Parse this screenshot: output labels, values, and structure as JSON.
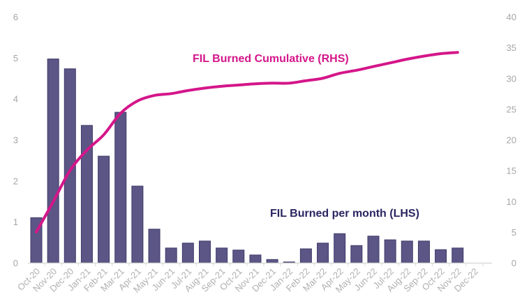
{
  "chart_data": {
    "type": "bar+line",
    "categories": [
      "Oct-20",
      "Nov-20",
      "Dec-20",
      "Jan-21",
      "Feb-21",
      "Mar-21",
      "Apr-21",
      "May-21",
      "Jun-21",
      "Jul-21",
      "Aug-21",
      "Sep-21",
      "Oct-21",
      "Nov-21",
      "Dec-21",
      "Jan-22",
      "Feb-22",
      "Mar-22",
      "Apr-22",
      "May-22",
      "Jun-22",
      "Jul-22",
      "Aug-22",
      "Sep-22",
      "Oct-22",
      "Nov-22",
      "Dec-22"
    ],
    "series": [
      {
        "name": "FIL Burned per month (LHS)",
        "type": "bar",
        "axis": "left",
        "color": "#5b5685",
        "values": [
          1.1,
          4.97,
          4.73,
          3.35,
          2.6,
          3.67,
          1.87,
          0.82,
          0.36,
          0.48,
          0.53,
          0.36,
          0.31,
          0.19,
          0.08,
          0.02,
          0.34,
          0.48,
          0.71,
          0.42,
          0.65,
          0.56,
          0.53,
          0.53,
          0.32,
          0.36,
          null
        ]
      },
      {
        "name": "FIL Burned Cumulative (RHS)",
        "type": "line",
        "axis": "right",
        "color": "#d4168a",
        "values": [
          5.0,
          9.9,
          15.0,
          18.3,
          20.8,
          24.3,
          26.3,
          27.2,
          27.5,
          28.0,
          28.4,
          28.7,
          28.9,
          29.1,
          29.2,
          29.2,
          29.6,
          30.0,
          30.8,
          31.3,
          31.9,
          32.5,
          33.1,
          33.6,
          34.0,
          34.2,
          null
        ]
      }
    ],
    "left_axis": {
      "ylim": [
        0,
        6
      ],
      "ticks": [
        "0",
        "1",
        "2",
        "3",
        "4",
        "5",
        "6"
      ]
    },
    "right_axis": {
      "ylim": [
        0,
        40
      ],
      "ticks": [
        "0",
        "5",
        "10",
        "15",
        "20",
        "25",
        "30",
        "35",
        "40"
      ]
    },
    "annotations": {
      "line_label": "FIL Burned Cumulative (RHS)",
      "bar_label": "FIL Burned per month (LHS)"
    },
    "grid": false
  }
}
